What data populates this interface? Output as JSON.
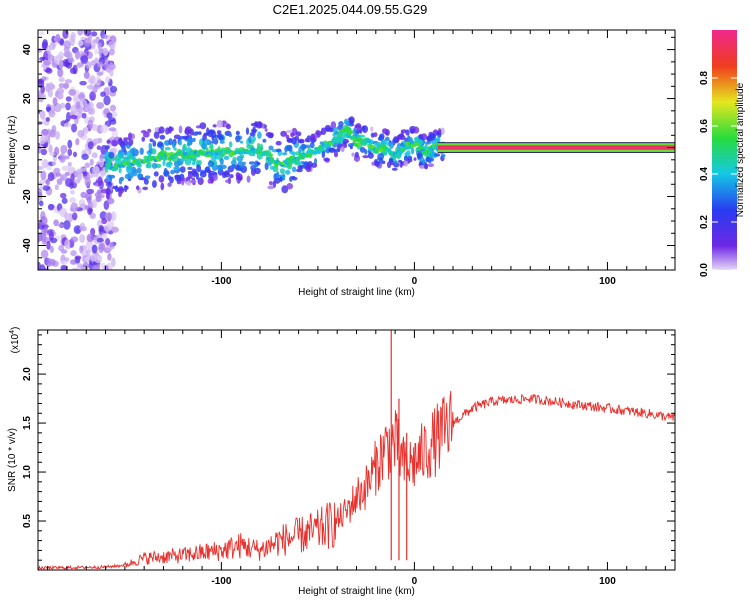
{
  "title": "C2E1.2025.044.09.55.G29",
  "chart_data": [
    {
      "type": "heatmap",
      "title": "C2E1.2025.044.09.55.G29",
      "xlabel": "Height of straight line (km)",
      "ylabel": "Frequency (Hz)",
      "xlim": [
        -195,
        135
      ],
      "ylim": [
        -50,
        48
      ],
      "x_ticks": [
        -100,
        0,
        100
      ],
      "x_tick_labels": [
        "-100",
        "0",
        "100"
      ],
      "y_ticks": [
        -40,
        -20,
        0,
        20,
        40
      ],
      "y_tick_labels": [
        "-40",
        "-20",
        "0",
        "20",
        "40"
      ],
      "ridge": {
        "x": [
          -155,
          -140,
          -120,
          -100,
          -80,
          -70,
          -60,
          -50,
          -40,
          -35,
          -30,
          -25,
          -20,
          -15,
          -10,
          -5,
          0,
          5,
          10,
          15,
          135
        ],
        "y": [
          -8,
          -5,
          -3,
          -2,
          -1,
          -7,
          -4,
          -1,
          4,
          8,
          2,
          3,
          -1,
          0,
          -3,
          0,
          2,
          -2,
          0,
          0,
          0
        ]
      },
      "noise_region_x": [
        -195,
        -155
      ],
      "colorbar": {
        "label": "Normalized spectral amplitude",
        "range": [
          0,
          1
        ],
        "ticks": [
          0.0,
          0.2,
          0.4,
          0.6,
          0.8
        ],
        "tick_labels": [
          "0.0",
          "0.2",
          "0.4",
          "0.6",
          "0.8"
        ]
      }
    },
    {
      "type": "line",
      "xlabel": "Height of straight line (km)",
      "ylabel": "SNR (10 * v/v)",
      "scale_label": "(x10",
      "scale_exp": "4",
      "scale_close": ")",
      "xlim": [
        -195,
        135
      ],
      "ylim": [
        0,
        2.45
      ],
      "x_ticks": [
        -100,
        0,
        100
      ],
      "x_tick_labels": [
        "-100",
        "0",
        "100"
      ],
      "y_ticks": [
        0.5,
        1.0,
        1.5,
        2.0
      ],
      "y_tick_labels": [
        "0.5",
        "1.0",
        "1.5",
        "2.0"
      ],
      "color": "#e8302c",
      "series": [
        {
          "name": "SNR",
          "x": [
            -195,
            -160,
            -150,
            -140,
            -120,
            -100,
            -90,
            -80,
            -70,
            -60,
            -50,
            -40,
            -35,
            -30,
            -25,
            -20,
            -15,
            -10,
            -5,
            0,
            5,
            10,
            20,
            30,
            40,
            60,
            80,
            100,
            120,
            135
          ],
          "values": [
            0.02,
            0.03,
            0.05,
            0.12,
            0.15,
            0.2,
            0.25,
            0.2,
            0.3,
            0.35,
            0.4,
            0.5,
            0.6,
            0.75,
            0.85,
            1.05,
            1.25,
            1.3,
            1.05,
            1.1,
            1.2,
            1.3,
            1.5,
            1.65,
            1.72,
            1.75,
            1.7,
            1.65,
            1.6,
            1.55
          ]
        }
      ],
      "spikes": [
        {
          "x": -12,
          "y": 2.45
        },
        {
          "x": -8,
          "y": 1.75
        },
        {
          "x": -4,
          "y": 1.4
        }
      ]
    }
  ]
}
